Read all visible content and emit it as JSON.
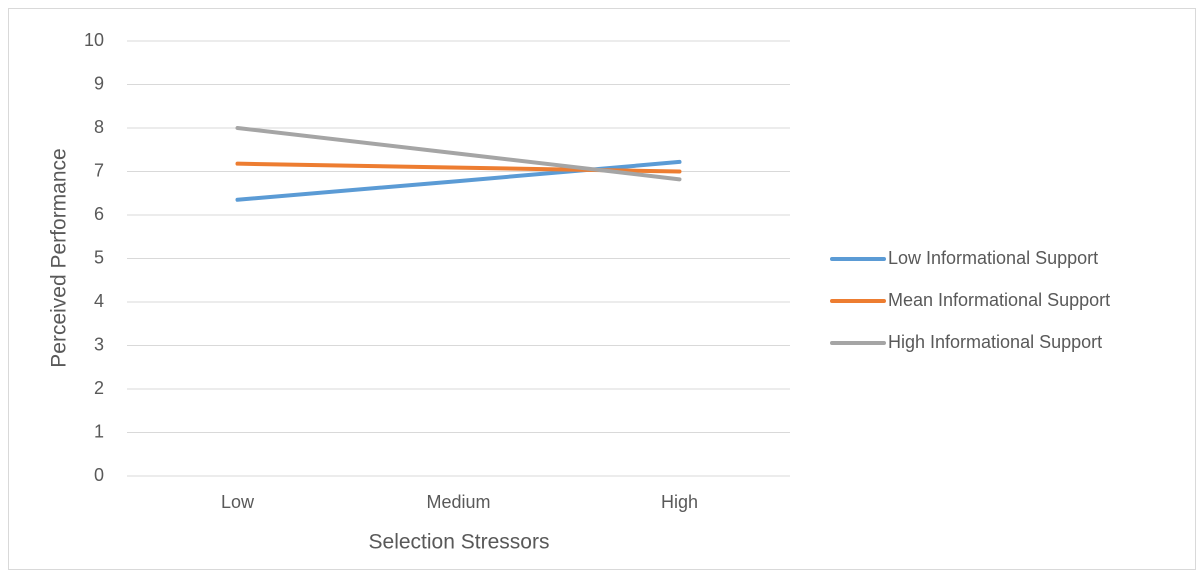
{
  "chart_data": {
    "type": "line",
    "x_label": "Selection Stressors",
    "y_label": "Perceived Performance",
    "categories": [
      "Low",
      "Medium",
      "High"
    ],
    "series": [
      {
        "name": "Low Informational Support",
        "color": "#5b9bd5",
        "values": [
          6.35,
          6.78,
          7.22
        ]
      },
      {
        "name": "Mean Informational Support",
        "color": "#ed7d31",
        "values": [
          7.18,
          7.09,
          7.0
        ]
      },
      {
        "name": "High Informational Support",
        "color": "#a5a5a5",
        "values": [
          8.0,
          7.41,
          6.82
        ]
      }
    ],
    "ylim": [
      0,
      10
    ],
    "yticks": [
      0,
      1,
      2,
      3,
      4,
      5,
      6,
      7,
      8,
      9,
      10
    ],
    "grid": true,
    "legend": "right"
  }
}
